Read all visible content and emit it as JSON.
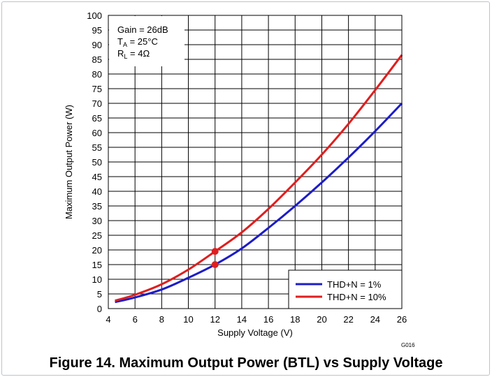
{
  "chart_data": {
    "type": "line",
    "xlabel": "Supply Voltage (V)",
    "ylabel": "Maximum Output Power (W)",
    "xlim": [
      4,
      26
    ],
    "ylim": [
      0,
      100
    ],
    "x_ticks": [
      4,
      6,
      8,
      10,
      12,
      14,
      16,
      18,
      20,
      22,
      24,
      26
    ],
    "y_ticks": [
      0,
      5,
      10,
      15,
      20,
      25,
      30,
      35,
      40,
      45,
      50,
      55,
      60,
      65,
      70,
      75,
      80,
      85,
      90,
      95,
      100
    ],
    "grid": true,
    "legend_position": "bottom-right",
    "conditions": [
      "Gain = 26dB",
      "TA = 25°C",
      "RL = 4Ω"
    ],
    "series": [
      {
        "name": "THD+N = 1%",
        "color": "#1c1cc8",
        "x": [
          4.5,
          6,
          8,
          10,
          12,
          14,
          16,
          18,
          20,
          22,
          24,
          26
        ],
        "y": [
          2.2,
          3.8,
          6.5,
          10.5,
          15.0,
          20.5,
          27.5,
          35.0,
          43.0,
          51.5,
          60.5,
          70.0
        ]
      },
      {
        "name": "THD+N = 10%",
        "color": "#e01e1e",
        "x": [
          4.5,
          6,
          8,
          10,
          12,
          14,
          16,
          18,
          20,
          22,
          24,
          26
        ],
        "y": [
          2.7,
          4.7,
          8.3,
          13.3,
          19.5,
          26.0,
          34.0,
          43.0,
          52.5,
          63.0,
          74.5,
          86.5
        ]
      }
    ],
    "markers": [
      {
        "x": 12,
        "y": 19.5,
        "color": "#e01e1e"
      },
      {
        "x": 12,
        "y": 15.0,
        "color": "#e01e1e"
      }
    ]
  },
  "conditions_display": {
    "gain": "Gain = 26dB",
    "ta_main": "T",
    "ta_sub": "A",
    "ta_rest": " = 25°C",
    "rl_main": "R",
    "rl_sub": "L",
    "rl_rest": " = 4Ω"
  },
  "doc_id": "G016",
  "caption": "Figure 14. Maximum Output Power (BTL) vs Supply Voltage"
}
